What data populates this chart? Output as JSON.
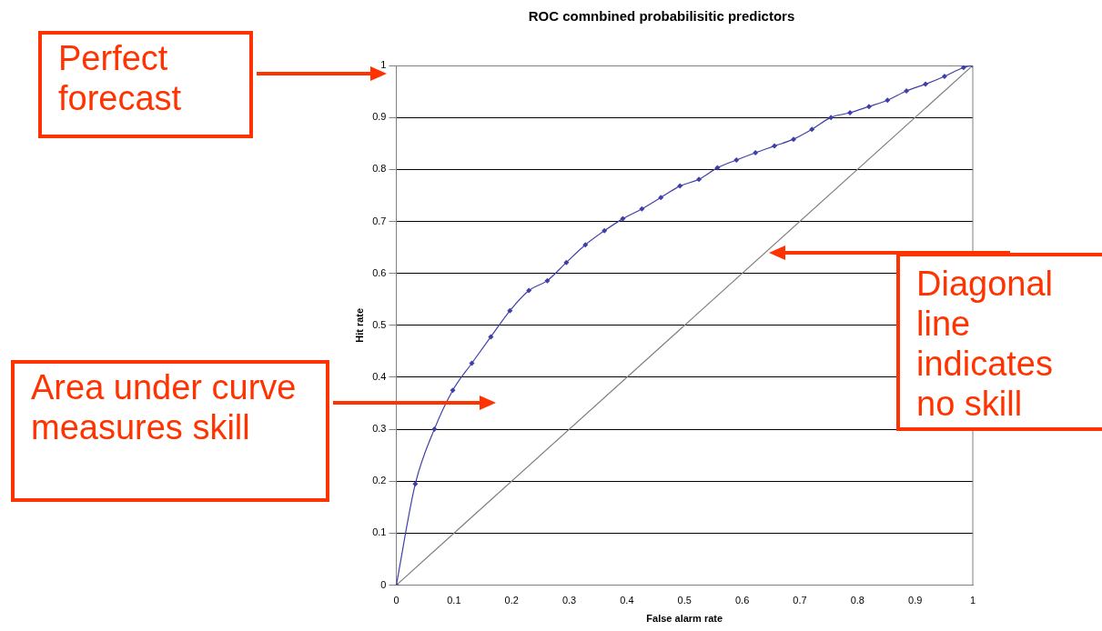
{
  "chart_data": {
    "type": "line",
    "title": "ROC comnbined probabilisitic predictors",
    "xlabel": "False alarm rate",
    "ylabel": "Hit rate",
    "xlim": [
      0,
      1
    ],
    "xticks": [
      0,
      0.1,
      0.2,
      0.3,
      0.4,
      0.5,
      0.6,
      0.7,
      0.8,
      0.9,
      1
    ],
    "ylim": [
      0,
      1
    ],
    "yticks": [
      0,
      0.1,
      0.2,
      0.3,
      0.4,
      0.5,
      0.6,
      0.7,
      0.8,
      0.9,
      1
    ],
    "grid": "y",
    "legend": false,
    "series": [
      {
        "color": "#3f3fa8",
        "marker": "diamond",
        "x": [
          0,
          0.033,
          0.066,
          0.098,
          0.131,
          0.164,
          0.197,
          0.23,
          0.262,
          0.295,
          0.328,
          0.361,
          0.393,
          0.426,
          0.459,
          0.492,
          0.525,
          0.557,
          0.59,
          0.623,
          0.656,
          0.689,
          0.721,
          0.754,
          0.787,
          0.82,
          0.852,
          0.885,
          0.918,
          0.951,
          0.984,
          1
        ],
        "values": [
          0,
          0.195,
          0.3,
          0.375,
          0.427,
          0.478,
          0.528,
          0.567,
          0.586,
          0.621,
          0.655,
          0.682,
          0.705,
          0.724,
          0.746,
          0.768,
          0.781,
          0.803,
          0.818,
          0.832,
          0.845,
          0.858,
          0.877,
          0.9,
          0.909,
          0.921,
          0.933,
          0.951,
          0.964,
          0.979,
          0.996,
          1
        ]
      },
      {
        "color": "#808080",
        "marker": "none",
        "x": [
          0,
          1
        ],
        "values": [
          0,
          1
        ]
      }
    ],
    "annotations": [
      "Perfect forecast",
      "Area under curve measures skill",
      "Diagonal line indicates no skill"
    ]
  }
}
